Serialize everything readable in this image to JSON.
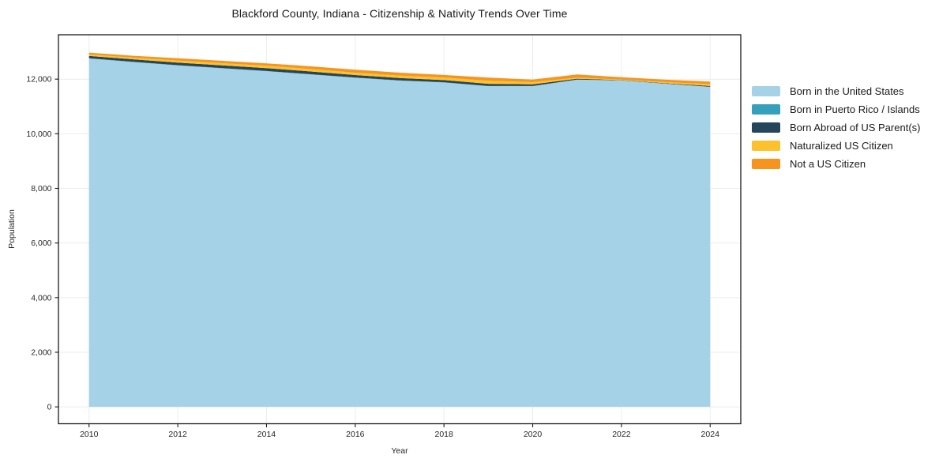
{
  "title": "Blackford County, Indiana - Citizenship & Nativity Trends Over Time",
  "xlabel": "Year",
  "ylabel": "Population",
  "chart_data": {
    "type": "area",
    "stacked": true,
    "title": "Blackford County, Indiana - Citizenship & Nativity Trends Over Time",
    "xlabel": "Year",
    "ylabel": "Population",
    "x": [
      2010,
      2011,
      2012,
      2013,
      2014,
      2015,
      2016,
      2017,
      2018,
      2019,
      2020,
      2021,
      2022,
      2023,
      2024
    ],
    "series": [
      {
        "name": "Born in the United States",
        "color": "#a6d2e7",
        "values": [
          12755,
          12625,
          12500,
          12395,
          12290,
          12170,
          12050,
          11945,
          11875,
          11740,
          11740,
          11980,
          11950,
          11830,
          11715
        ]
      },
      {
        "name": "Born in Puerto Rico / Islands",
        "color": "#35a0bc",
        "values": [
          10,
          10,
          10,
          10,
          10,
          10,
          10,
          10,
          10,
          10,
          10,
          5,
          5,
          5,
          5
        ]
      },
      {
        "name": "Born Abroad of US Parent(s)",
        "color": "#25455a",
        "values": [
          85,
          90,
          95,
          100,
          105,
          100,
          90,
          85,
          80,
          80,
          60,
          30,
          10,
          15,
          30
        ]
      },
      {
        "name": "Naturalized US Citizen",
        "color": "#fcc22d",
        "values": [
          55,
          60,
          75,
          80,
          85,
          90,
          85,
          90,
          90,
          110,
          80,
          40,
          20,
          40,
          65
        ]
      },
      {
        "name": "Not a US Citizen",
        "color": "#f7941e",
        "values": [
          65,
          70,
          85,
          85,
          85,
          100,
          110,
          105,
          100,
          115,
          95,
          115,
          85,
          90,
          95
        ]
      }
    ],
    "xticks": [
      2010,
      2012,
      2014,
      2016,
      2018,
      2020,
      2022,
      2024
    ],
    "yticks": [
      0,
      2000,
      4000,
      6000,
      8000,
      10000,
      12000
    ],
    "xlim": [
      2009.31,
      2024.69
    ],
    "ylim": [
      -618,
      13625
    ],
    "grid": true,
    "legend_position": "right",
    "grid_color": "#ececec",
    "frame_color": "#1a1a1a",
    "tick_label_color": "#262626"
  }
}
